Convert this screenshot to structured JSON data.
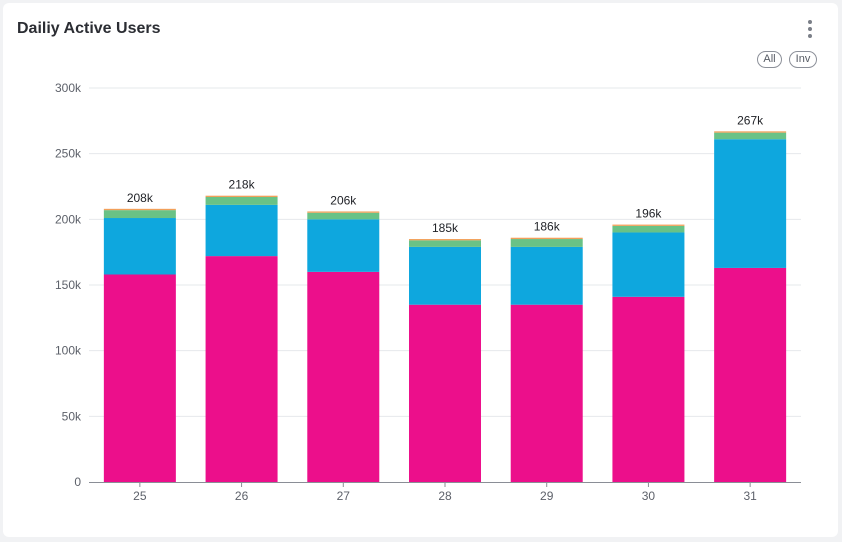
{
  "card": {
    "title": "Dailiy Active Users",
    "menu_icon": "more-vertical-icon",
    "buttons": [
      {
        "label": "All"
      },
      {
        "label": "Inv"
      }
    ]
  },
  "chart_data": {
    "type": "bar",
    "stacked": true,
    "categories": [
      "25",
      "26",
      "27",
      "28",
      "29",
      "30",
      "31"
    ],
    "series": [
      {
        "color": "#ec0f8b",
        "values": [
          158000,
          172000,
          160000,
          135000,
          135000,
          141000,
          163000
        ]
      },
      {
        "color": "#0ea7de",
        "values": [
          43000,
          39000,
          40000,
          44000,
          44000,
          49000,
          98000
        ]
      },
      {
        "color": "#69c286",
        "values": [
          6000,
          6000,
          5000,
          5000,
          6000,
          5000,
          5000
        ]
      },
      {
        "color": "#f2a05a",
        "values": [
          1000,
          1000,
          1000,
          1000,
          1000,
          1000,
          1000
        ]
      }
    ],
    "totals": [
      "208k",
      "218k",
      "206k",
      "185k",
      "186k",
      "196k",
      "267k"
    ],
    "ylim": [
      0,
      300000
    ],
    "y_ticks": [
      {
        "value": 0,
        "label": "0"
      },
      {
        "value": 50000,
        "label": "50k"
      },
      {
        "value": 100000,
        "label": "100k"
      },
      {
        "value": 150000,
        "label": "150k"
      },
      {
        "value": 200000,
        "label": "200k"
      },
      {
        "value": 250000,
        "label": "250k"
      },
      {
        "value": 300000,
        "label": "300k"
      }
    ],
    "grid": true,
    "legend": "none"
  }
}
